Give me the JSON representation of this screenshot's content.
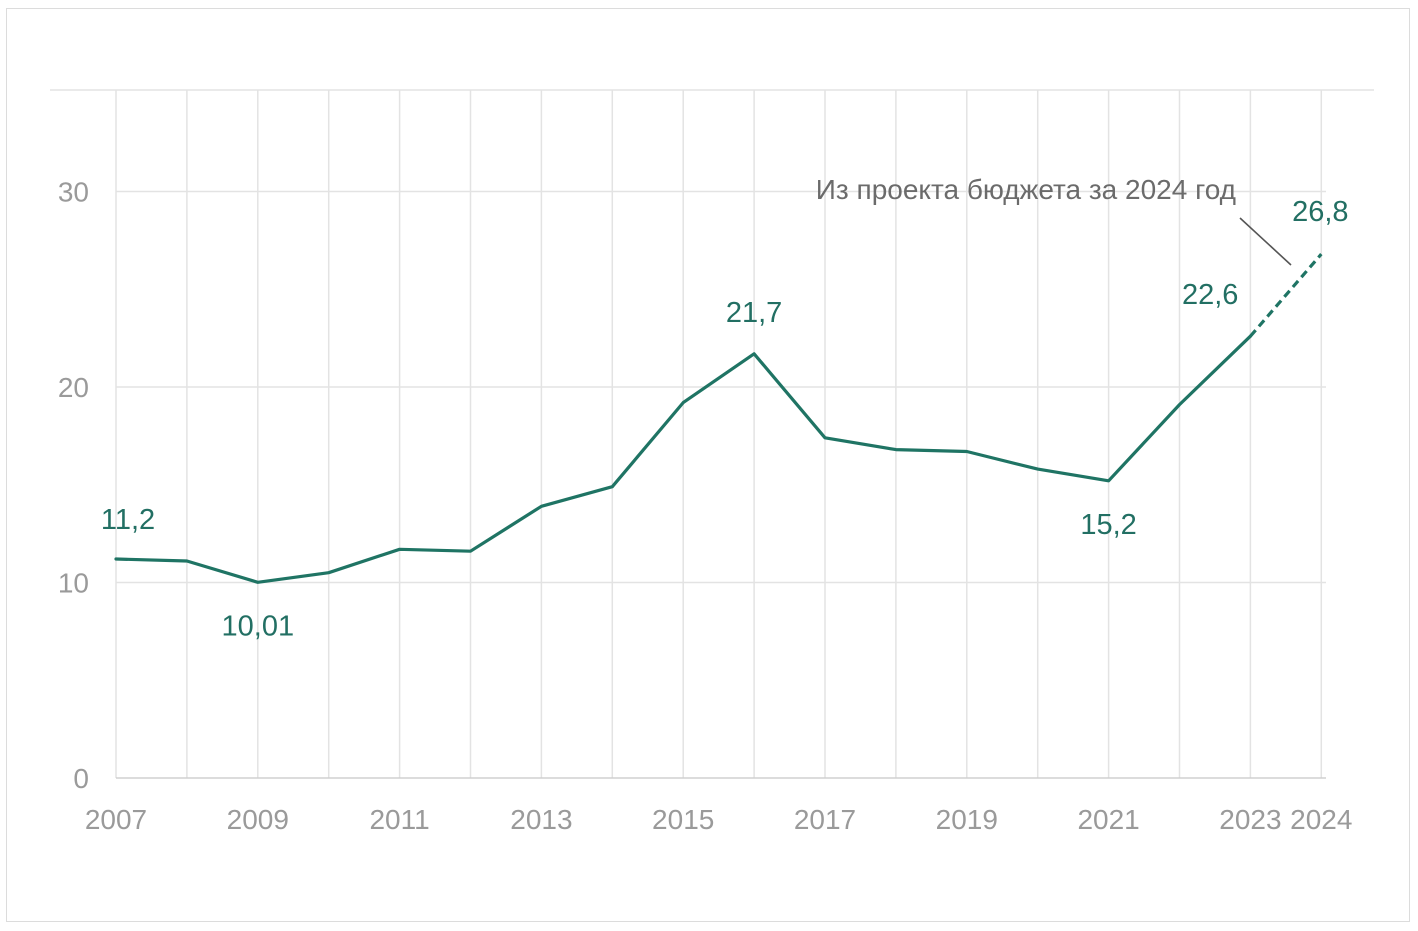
{
  "colors": {
    "line": "#1f7464",
    "grid": "#e3e3e3",
    "tick": "#9a9a9a",
    "label": "#226f63",
    "annotation": "#6b6b6b"
  },
  "chart_data": {
    "type": "line",
    "title": "",
    "xlabel": "",
    "ylabel": "",
    "ylim": [
      0,
      35
    ],
    "yticks": [
      0,
      10,
      20,
      30
    ],
    "ytick_labels": [
      "0",
      "10",
      "20",
      "30"
    ],
    "x": [
      2007,
      2008,
      2009,
      2010,
      2011,
      2012,
      2013,
      2014,
      2015,
      2016,
      2017,
      2018,
      2019,
      2020,
      2021,
      2022,
      2023,
      2024
    ],
    "xtick_labels": [
      {
        "year": 2007,
        "label": "2007"
      },
      {
        "year": 2009,
        "label": "2009"
      },
      {
        "year": 2011,
        "label": "2011"
      },
      {
        "year": 2013,
        "label": "2013"
      },
      {
        "year": 2015,
        "label": "2015"
      },
      {
        "year": 2017,
        "label": "2017"
      },
      {
        "year": 2019,
        "label": "2019"
      },
      {
        "year": 2021,
        "label": "2021"
      },
      {
        "year": 2023,
        "label": "2023"
      },
      {
        "year": 2024,
        "label": "2024"
      }
    ],
    "series": [
      {
        "name": "actual",
        "style": "solid",
        "x": [
          2007,
          2008,
          2009,
          2010,
          2011,
          2012,
          2013,
          2014,
          2015,
          2016,
          2017,
          2018,
          2019,
          2020,
          2021,
          2022,
          2023
        ],
        "values": [
          11.2,
          11.1,
          10.01,
          10.5,
          11.7,
          11.6,
          13.9,
          14.9,
          19.2,
          21.7,
          17.4,
          16.8,
          16.7,
          15.8,
          15.2,
          19.1,
          22.6
        ]
      },
      {
        "name": "projected",
        "style": "dashed",
        "x": [
          2023,
          2024
        ],
        "values": [
          22.6,
          26.8
        ]
      }
    ],
    "data_labels": [
      {
        "year": 2007,
        "value": 11.2,
        "text": "11,2",
        "pos": "above"
      },
      {
        "year": 2009,
        "value": 10.01,
        "text": "10,01",
        "pos": "below"
      },
      {
        "year": 2016,
        "value": 21.7,
        "text": "21,7",
        "pos": "above"
      },
      {
        "year": 2021,
        "value": 15.2,
        "text": "15,2",
        "pos": "below"
      },
      {
        "year": 2023,
        "value": 22.6,
        "text": "22,6",
        "pos": "above-left"
      },
      {
        "year": 2024,
        "value": 26.8,
        "text": "26,8",
        "pos": "above"
      }
    ],
    "annotation": "Из проекта бюджета за 2024 год"
  }
}
